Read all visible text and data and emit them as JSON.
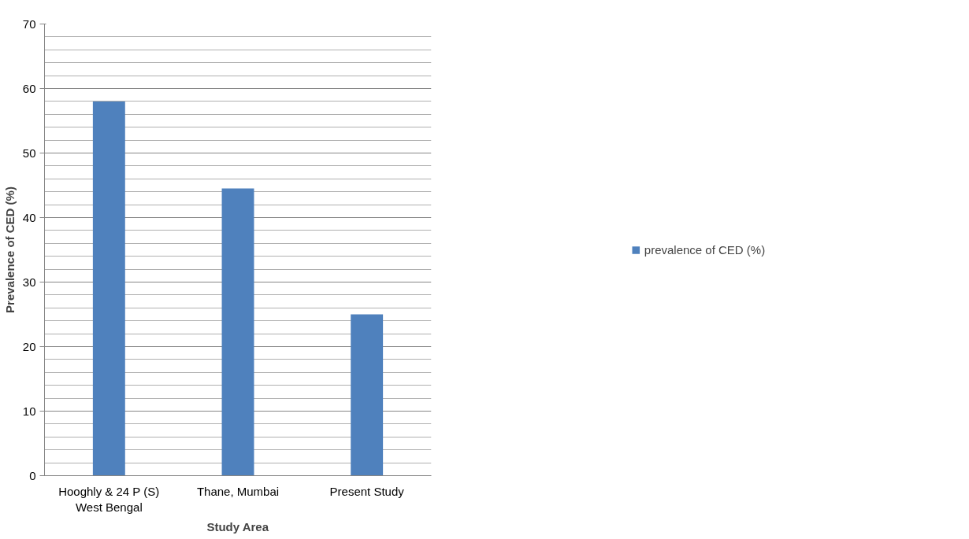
{
  "chart_data": {
    "type": "bar",
    "xlabel": "Study Area",
    "ylabel": "Prevalence of CED (%)",
    "categories": [
      "Hooghly & 24 P (S)\nWest Bengal",
      "Thane, Mumbai",
      "Present Study"
    ],
    "series": [
      {
        "name": "prevalence of CED (%)",
        "color": "#4f81bd",
        "values": [
          58,
          44.5,
          25
        ]
      }
    ],
    "ylim": [
      0,
      70
    ],
    "yticks": [
      0,
      10,
      20,
      30,
      40,
      50,
      60,
      70
    ],
    "grid": "y",
    "legend": "right"
  }
}
